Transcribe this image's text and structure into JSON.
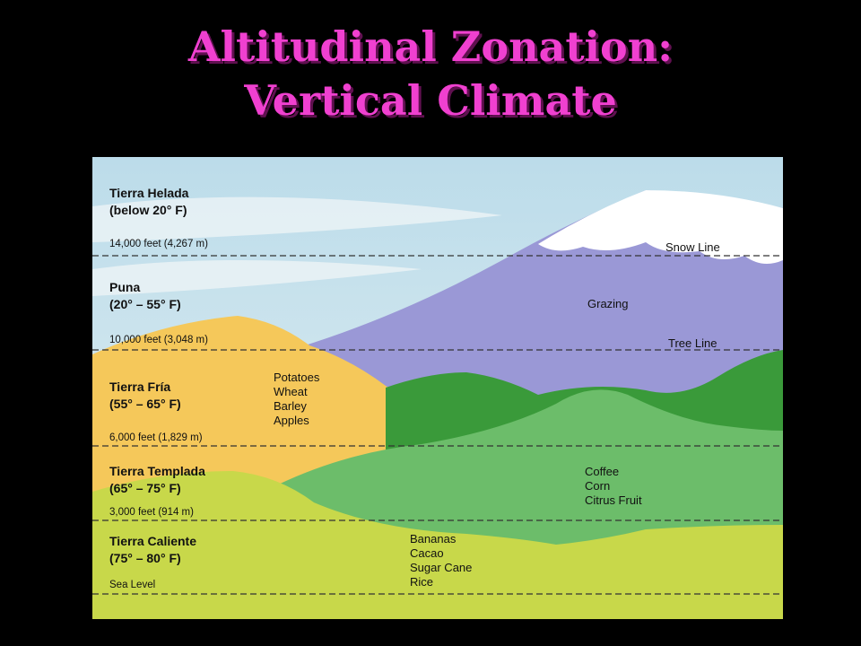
{
  "title": {
    "line1": "Altitudinal Zonation:",
    "line2": "Vertical Climate"
  },
  "zones": [
    {
      "name": "Tierra Helada",
      "temp": "(below 20° F)",
      "lower_bound": "14,000 feet (4,267 m)"
    },
    {
      "name": "Puna",
      "temp": "(20° – 55° F)",
      "lower_bound": "10,000 feet (3,048 m)"
    },
    {
      "name": "Tierra Fría",
      "temp": "(55° – 65° F)",
      "lower_bound": "6,000 feet (1,829 m)"
    },
    {
      "name": "Tierra Templada",
      "temp": "(65° – 75° F)",
      "lower_bound": "3,000 feet (914 m)"
    },
    {
      "name": "Tierra Caliente",
      "temp": "(75° – 80° F)",
      "lower_bound": "Sea Level"
    }
  ],
  "mountain_labels": {
    "snow": "Snow Line",
    "grazing": "Grazing",
    "tree": "Tree Line"
  },
  "crops": {
    "fria": [
      "Potatoes",
      "Wheat",
      "Barley",
      "Apples"
    ],
    "templada": [
      "Coffee",
      "Corn",
      "Citrus Fruit"
    ],
    "caliente": [
      "Bananas",
      "Cacao",
      "Sugar Cane",
      "Rice"
    ]
  }
}
